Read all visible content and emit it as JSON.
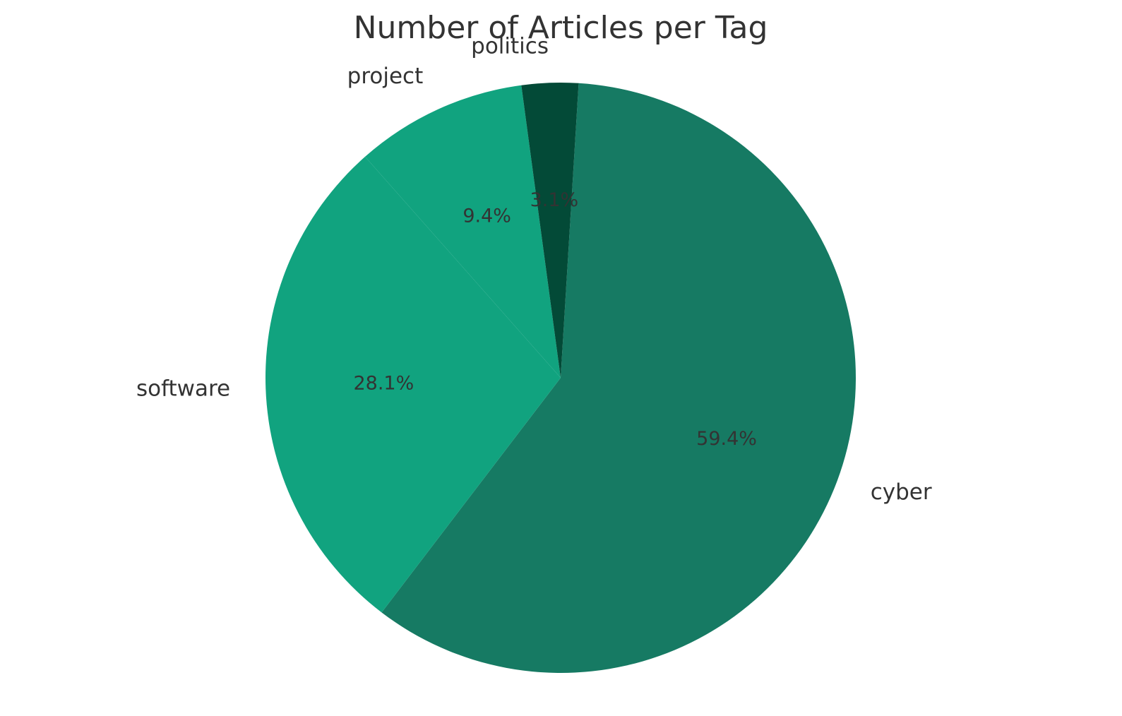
{
  "chart_data": {
    "type": "pie",
    "title": "Number of Articles per Tag",
    "categories": [
      "cyber",
      "software",
      "project",
      "politics"
    ],
    "values": [
      59.4,
      28.1,
      9.4,
      3.1
    ],
    "labels": [
      "cyber",
      "software",
      "project",
      "politics"
    ],
    "percent_labels": [
      "59.4%",
      "28.1%",
      "9.4%",
      "3.1%"
    ],
    "colors": [
      "#167a63",
      "#11a37f",
      "#11a37f",
      "#034a37"
    ],
    "start_angle_deg": -86.5,
    "direction": "clockwise"
  }
}
